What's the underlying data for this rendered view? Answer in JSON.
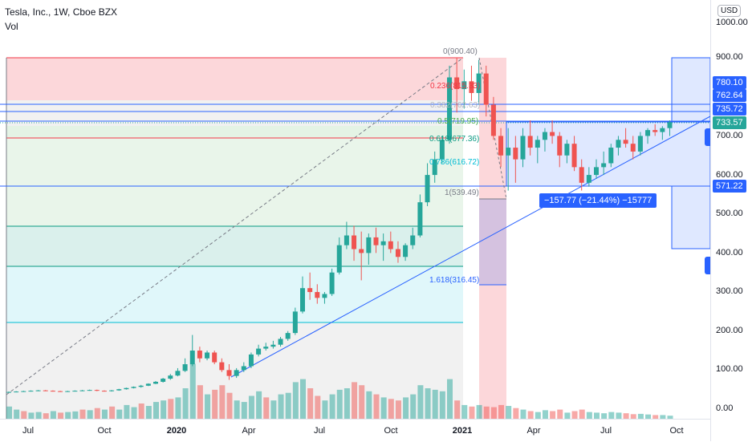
{
  "legend": {
    "title": "Tesla, Inc., 1W, Cboe BZX",
    "volume_label": "Vol"
  },
  "currency_button": "USD",
  "price_axis": {
    "ticks": [
      "1000.00",
      "900.00",
      "700.00",
      "600.00",
      "500.00",
      "400.00",
      "300.00",
      "200.00",
      "100.00",
      "0.00"
    ],
    "badges": [
      {
        "label": "780.10",
        "color": "#2962ff"
      },
      {
        "label": "762.64",
        "color": "#2962ff"
      },
      {
        "label": "735.72",
        "color": "#2962ff"
      },
      {
        "label": "733.57",
        "color": "#26a69a"
      },
      {
        "label": "571.22",
        "color": "#2962ff"
      }
    ]
  },
  "time_axis": {
    "ticks": [
      {
        "label": "Jul",
        "bold": false
      },
      {
        "label": "Oct",
        "bold": false
      },
      {
        "label": "2020",
        "bold": true
      },
      {
        "label": "Apr",
        "bold": false
      },
      {
        "label": "Jul",
        "bold": false
      },
      {
        "label": "Oct",
        "bold": false
      },
      {
        "label": "2021",
        "bold": true
      },
      {
        "label": "Apr",
        "bold": false
      },
      {
        "label": "Jul",
        "bold": false
      },
      {
        "label": "Oct",
        "bold": false
      }
    ]
  },
  "fib_levels": [
    {
      "label": "0(900.40)",
      "color": "#787b86"
    },
    {
      "label": "0.236(815.33)",
      "color": "#f23645"
    },
    {
      "label": "0.382(762.63)",
      "color": "#b2b5be"
    },
    {
      "label": "0.5(719.95)",
      "color": "#4caf50"
    },
    {
      "label": "0.618(677.36)",
      "color": "#089981"
    },
    {
      "label": "0.786(616.72)",
      "color": "#00bcd4"
    },
    {
      "label": "1(539.49)",
      "color": "#787b86"
    },
    {
      "label": "1.618(316.45)",
      "color": "#2962ff"
    }
  ],
  "measure_label": "−157.77 (−21.44%) −15777",
  "colors": {
    "up": "#26a69a",
    "down": "#ef5350",
    "accent": "#2962ff"
  },
  "chart_data": {
    "type": "candlestick",
    "title": "Tesla, Inc., 1W, Cboe BZX",
    "ylim": [
      0,
      1000
    ],
    "candles": [
      [
        44,
        45,
        43,
        44
      ],
      [
        44,
        46,
        43,
        45
      ],
      [
        45,
        47,
        44,
        46
      ],
      [
        46,
        48,
        45,
        47
      ],
      [
        47,
        49,
        46,
        48
      ],
      [
        48,
        49,
        46,
        47
      ],
      [
        47,
        48,
        45,
        46
      ],
      [
        46,
        47,
        44,
        45
      ],
      [
        45,
        47,
        44,
        46
      ],
      [
        46,
        48,
        45,
        47
      ],
      [
        47,
        49,
        46,
        48
      ],
      [
        48,
        50,
        47,
        49
      ],
      [
        49,
        50,
        46,
        47
      ],
      [
        47,
        48,
        45,
        46
      ],
      [
        46,
        49,
        45,
        48
      ],
      [
        48,
        52,
        47,
        51
      ],
      [
        51,
        55,
        50,
        54
      ],
      [
        54,
        58,
        53,
        57
      ],
      [
        57,
        62,
        55,
        60
      ],
      [
        60,
        66,
        59,
        65
      ],
      [
        65,
        72,
        64,
        70
      ],
      [
        70,
        80,
        68,
        78
      ],
      [
        78,
        90,
        75,
        86
      ],
      [
        86,
        105,
        84,
        98
      ],
      [
        98,
        130,
        95,
        115
      ],
      [
        115,
        190,
        110,
        150
      ],
      [
        150,
        160,
        120,
        130
      ],
      [
        130,
        150,
        125,
        145
      ],
      [
        145,
        150,
        115,
        120
      ],
      [
        120,
        130,
        95,
        100
      ],
      [
        100,
        115,
        75,
        85
      ],
      [
        85,
        105,
        80,
        100
      ],
      [
        100,
        120,
        95,
        110
      ],
      [
        110,
        145,
        105,
        140
      ],
      [
        140,
        165,
        135,
        155
      ],
      [
        155,
        170,
        150,
        160
      ],
      [
        160,
        175,
        155,
        165
      ],
      [
        165,
        185,
        160,
        180
      ],
      [
        180,
        200,
        175,
        195
      ],
      [
        195,
        260,
        190,
        250
      ],
      [
        250,
        340,
        245,
        310
      ],
      [
        310,
        350,
        280,
        300
      ],
      [
        300,
        320,
        270,
        285
      ],
      [
        285,
        300,
        270,
        295
      ],
      [
        295,
        360,
        290,
        350
      ],
      [
        350,
        440,
        345,
        420
      ],
      [
        420,
        480,
        410,
        445
      ],
      [
        445,
        470,
        380,
        410
      ],
      [
        410,
        455,
        330,
        400
      ],
      [
        400,
        450,
        370,
        440
      ],
      [
        440,
        465,
        400,
        420
      ],
      [
        420,
        450,
        380,
        430
      ],
      [
        430,
        455,
        400,
        410
      ],
      [
        410,
        430,
        375,
        390
      ],
      [
        390,
        425,
        380,
        420
      ],
      [
        420,
        465,
        410,
        445
      ],
      [
        445,
        550,
        440,
        530
      ],
      [
        530,
        630,
        520,
        600
      ],
      [
        600,
        660,
        580,
        640
      ],
      [
        640,
        700,
        630,
        690
      ],
      [
        690,
        880,
        680,
        850
      ],
      [
        850,
        900,
        760,
        820
      ],
      [
        820,
        870,
        770,
        840
      ],
      [
        840,
        880,
        790,
        810
      ],
      [
        810,
        895,
        780,
        860
      ],
      [
        860,
        880,
        750,
        780
      ],
      [
        780,
        800,
        690,
        700
      ],
      [
        700,
        720,
        620,
        650
      ],
      [
        650,
        720,
        560,
        670
      ],
      [
        670,
        700,
        580,
        640
      ],
      [
        640,
        720,
        620,
        700
      ],
      [
        700,
        740,
        650,
        670
      ],
      [
        670,
        700,
        630,
        690
      ],
      [
        690,
        720,
        660,
        710
      ],
      [
        710,
        740,
        680,
        700
      ],
      [
        700,
        710,
        620,
        650
      ],
      [
        650,
        690,
        630,
        680
      ],
      [
        680,
        700,
        610,
        620
      ],
      [
        620,
        640,
        560,
        580
      ],
      [
        580,
        620,
        570,
        600
      ],
      [
        600,
        640,
        590,
        620
      ],
      [
        620,
        660,
        600,
        630
      ],
      [
        630,
        680,
        620,
        670
      ],
      [
        670,
        700,
        650,
        690
      ],
      [
        690,
        720,
        670,
        680
      ],
      [
        680,
        700,
        640,
        660
      ],
      [
        660,
        710,
        650,
        700
      ],
      [
        700,
        720,
        680,
        715
      ],
      [
        715,
        730,
        700,
        710
      ],
      [
        710,
        725,
        690,
        720
      ],
      [
        720,
        740,
        700,
        735
      ]
    ],
    "volumes": [
      [
        40,
        "up"
      ],
      [
        30,
        "up"
      ],
      [
        25,
        "down"
      ],
      [
        20,
        "up"
      ],
      [
        22,
        "up"
      ],
      [
        18,
        "down"
      ],
      [
        25,
        "up"
      ],
      [
        20,
        "down"
      ],
      [
        22,
        "up"
      ],
      [
        24,
        "up"
      ],
      [
        30,
        "down"
      ],
      [
        28,
        "up"
      ],
      [
        35,
        "down"
      ],
      [
        30,
        "up"
      ],
      [
        40,
        "down"
      ],
      [
        30,
        "up"
      ],
      [
        45,
        "up"
      ],
      [
        38,
        "up"
      ],
      [
        50,
        "down"
      ],
      [
        42,
        "up"
      ],
      [
        55,
        "up"
      ],
      [
        60,
        "up"
      ],
      [
        65,
        "down"
      ],
      [
        70,
        "up"
      ],
      [
        100,
        "up"
      ],
      [
        180,
        "up"
      ],
      [
        110,
        "down"
      ],
      [
        80,
        "up"
      ],
      [
        95,
        "down"
      ],
      [
        110,
        "down"
      ],
      [
        85,
        "down"
      ],
      [
        60,
        "up"
      ],
      [
        55,
        "up"
      ],
      [
        75,
        "up"
      ],
      [
        90,
        "up"
      ],
      [
        70,
        "down"
      ],
      [
        60,
        "up"
      ],
      [
        80,
        "up"
      ],
      [
        85,
        "up"
      ],
      [
        120,
        "up"
      ],
      [
        130,
        "up"
      ],
      [
        100,
        "down"
      ],
      [
        75,
        "down"
      ],
      [
        60,
        "up"
      ],
      [
        80,
        "up"
      ],
      [
        95,
        "up"
      ],
      [
        100,
        "up"
      ],
      [
        120,
        "down"
      ],
      [
        110,
        "down"
      ],
      [
        90,
        "up"
      ],
      [
        80,
        "down"
      ],
      [
        70,
        "up"
      ],
      [
        65,
        "down"
      ],
      [
        60,
        "down"
      ],
      [
        70,
        "up"
      ],
      [
        80,
        "up"
      ],
      [
        110,
        "up"
      ],
      [
        100,
        "up"
      ],
      [
        95,
        "up"
      ],
      [
        90,
        "up"
      ],
      [
        130,
        "up"
      ],
      [
        60,
        "down"
      ],
      [
        45,
        "up"
      ],
      [
        40,
        "down"
      ],
      [
        45,
        "up"
      ],
      [
        40,
        "down"
      ],
      [
        38,
        "down"
      ],
      [
        45,
        "down"
      ],
      [
        42,
        "up"
      ],
      [
        35,
        "down"
      ],
      [
        30,
        "up"
      ],
      [
        25,
        "down"
      ],
      [
        22,
        "up"
      ],
      [
        28,
        "up"
      ],
      [
        25,
        "down"
      ],
      [
        30,
        "down"
      ],
      [
        20,
        "up"
      ],
      [
        25,
        "down"
      ],
      [
        30,
        "down"
      ],
      [
        22,
        "up"
      ],
      [
        20,
        "up"
      ],
      [
        18,
        "up"
      ],
      [
        22,
        "up"
      ],
      [
        20,
        "up"
      ],
      [
        18,
        "down"
      ],
      [
        15,
        "down"
      ],
      [
        16,
        "up"
      ],
      [
        14,
        "up"
      ],
      [
        12,
        "down"
      ],
      [
        12,
        "up"
      ],
      [
        10,
        "up"
      ]
    ]
  }
}
